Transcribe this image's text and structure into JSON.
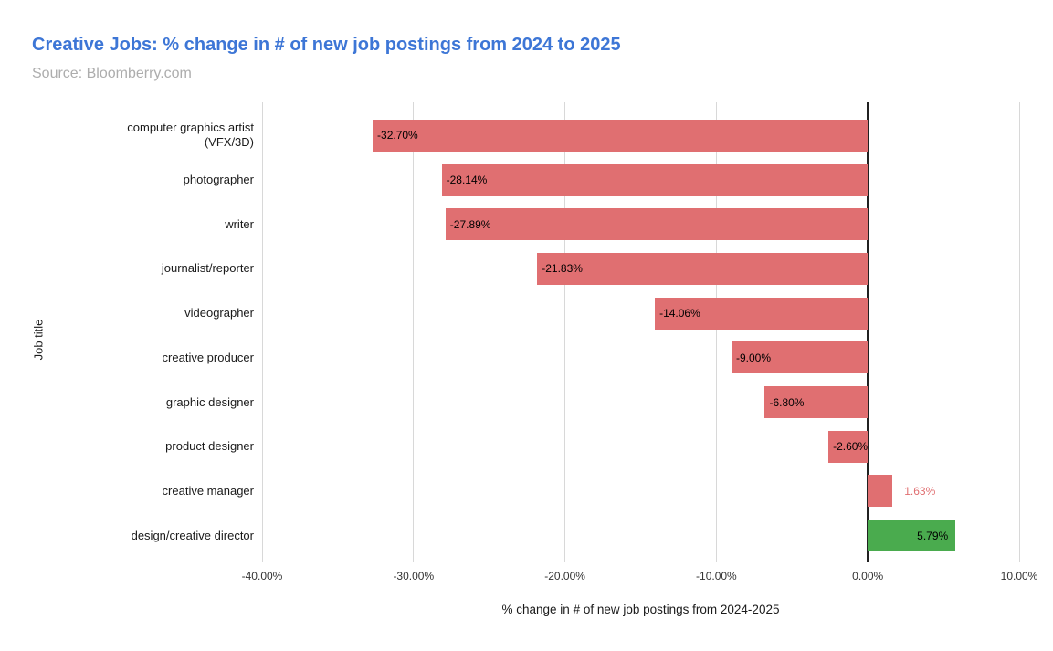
{
  "header": {
    "title": "Creative Jobs: % change in # of new job postings from 2024 to 2025",
    "subtitle": "Source: Bloomberry.com"
  },
  "colors": {
    "title_blue": "#3d76d6",
    "subtitle_gray": "#adadad",
    "red_bar": "#e06f71",
    "green_bar": "#4aab4e",
    "gridline": "#d8d8d8",
    "zero_line": "#212121",
    "outside_label_red": "#e06f71"
  },
  "chart_data": {
    "type": "bar",
    "orientation": "horizontal",
    "title": "Creative Jobs: % change in # of new job postings from 2024 to 2025",
    "subtitle": "Source: Bloomberry.com",
    "xlabel": "% change in # of new job postings from 2024-2025",
    "ylabel": "Job title",
    "xlim": [
      -40,
      10
    ],
    "grid": true,
    "legend": false,
    "categories": [
      "computer graphics artist\n(VFX/3D)",
      "photographer",
      "writer",
      "journalist/reporter",
      "videographer",
      "creative producer",
      "graphic designer",
      "product designer",
      "creative manager",
      "design/creative director"
    ],
    "values": [
      -32.7,
      -28.14,
      -27.89,
      -21.83,
      -14.06,
      -9.0,
      -6.8,
      -2.6,
      1.63,
      5.79
    ],
    "value_labels": [
      "-32.70%",
      "-28.14%",
      "-27.89%",
      "-21.83%",
      "-14.06%",
      "-9.00%",
      "-6.80%",
      "-2.60%",
      "1.63%",
      "5.79%"
    ],
    "bar_colors": [
      "#e06f71",
      "#e06f71",
      "#e06f71",
      "#e06f71",
      "#e06f71",
      "#e06f71",
      "#e06f71",
      "#e06f71",
      "#e06f71",
      "#4aab4e"
    ],
    "label_placements": [
      "inside-left",
      "inside-left",
      "inside-left",
      "inside-left",
      "inside-left",
      "inside-left",
      "inside-left",
      "inside-left",
      "outside-right",
      "inside-right"
    ],
    "label_colors": [
      "#000000",
      "#000000",
      "#000000",
      "#000000",
      "#000000",
      "#000000",
      "#000000",
      "#000000",
      "#e06f71",
      "#000000"
    ],
    "x_ticks": [
      {
        "value": -40,
        "label": "-40.00%"
      },
      {
        "value": -30,
        "label": "-30.00%"
      },
      {
        "value": -20,
        "label": "-20.00%"
      },
      {
        "value": -10,
        "label": "-10.00%"
      },
      {
        "value": 0,
        "label": "0.00%"
      },
      {
        "value": 10,
        "label": "10.00%"
      }
    ]
  }
}
